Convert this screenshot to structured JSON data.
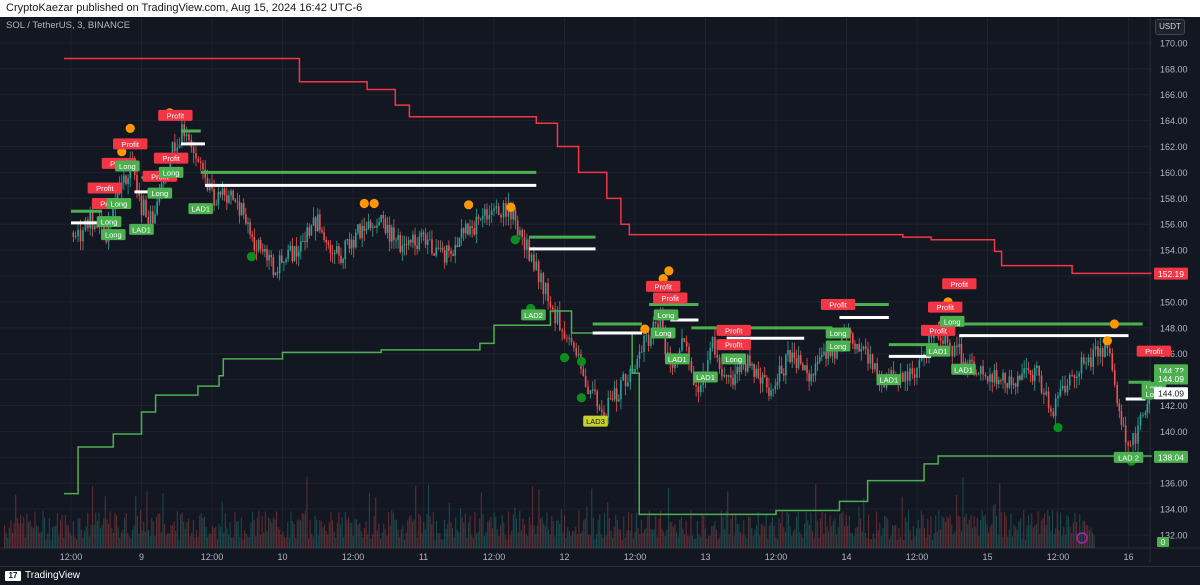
{
  "header": {
    "published_text": "CryptoKaezar published on TradingView.com, Aug 15, 2024 16:42 UTC-6"
  },
  "symbol_line": "SOL / TetherUS, 3, BINANCE",
  "currency_button": "USDT",
  "footer": {
    "logo_mark": "17",
    "logo_text": "TradingView"
  },
  "colors": {
    "background": "#131722",
    "grid": "#1e222d",
    "up_candle": "#26a69a",
    "down_candle": "#ef5350",
    "upper_band": "#f23645",
    "lower_band": "#4caf50",
    "white_level": "#ffffff",
    "green_level": "#4caf50",
    "profit_label": "#f23645",
    "long_label": "#4caf50",
    "orange_dot": "#ff9800",
    "green_dot": "#0a8f1e"
  },
  "chart_data": {
    "type": "candlestick",
    "title": "SOL / TetherUS, 3, BINANCE",
    "x_ticks": [
      "12:00",
      "9",
      "12:00",
      "10",
      "12:00",
      "11",
      "12:00",
      "12",
      "12:00",
      "13",
      "12:00",
      "14",
      "12:00",
      "15",
      "12:00",
      "16"
    ],
    "y_ticks": [
      132,
      134,
      136,
      138,
      140,
      142,
      144,
      146,
      148,
      150,
      152,
      154,
      156,
      158,
      160,
      162,
      164,
      166,
      168,
      170
    ],
    "ylim": [
      131,
      172
    ],
    "grid": true,
    "price_series_approx": [
      [
        0,
        155.2
      ],
      [
        0.05,
        154.8
      ],
      [
        0.12,
        156.4
      ],
      [
        0.25,
        155.0
      ],
      [
        0.33,
        158.6
      ],
      [
        0.42,
        160.5
      ],
      [
        0.5,
        157.5
      ],
      [
        0.58,
        156.0
      ],
      [
        0.72,
        162.2
      ],
      [
        0.82,
        163.4
      ],
      [
        0.92,
        160.0
      ],
      [
        1.0,
        158.0
      ],
      [
        1.15,
        158.5
      ],
      [
        1.3,
        154.5
      ],
      [
        1.45,
        152.6
      ],
      [
        1.6,
        154.0
      ],
      [
        1.75,
        156.2
      ],
      [
        1.9,
        153.4
      ],
      [
        2.05,
        155.5
      ],
      [
        2.2,
        156.0
      ],
      [
        2.35,
        154.2
      ],
      [
        2.5,
        155.0
      ],
      [
        2.65,
        153.6
      ],
      [
        2.8,
        155.4
      ],
      [
        2.95,
        156.6
      ],
      [
        3.05,
        157.2
      ],
      [
        3.12,
        157.0
      ],
      [
        3.2,
        155.0
      ],
      [
        3.3,
        152.5
      ],
      [
        3.4,
        149.8
      ],
      [
        3.5,
        147.5
      ],
      [
        3.6,
        145.2
      ],
      [
        3.7,
        142.8
      ],
      [
        3.78,
        141.6
      ],
      [
        3.9,
        143.5
      ],
      [
        4.0,
        145.5
      ],
      [
        4.08,
        147.2
      ],
      [
        4.18,
        148.2
      ],
      [
        4.25,
        144.5
      ],
      [
        4.35,
        147.5
      ],
      [
        4.45,
        142.8
      ],
      [
        4.55,
        146.8
      ],
      [
        4.65,
        143.5
      ],
      [
        4.8,
        145.5
      ],
      [
        4.95,
        143.5
      ],
      [
        5.1,
        145.8
      ],
      [
        5.25,
        144.5
      ],
      [
        5.4,
        146.2
      ],
      [
        5.5,
        147.5
      ],
      [
        5.62,
        146.0
      ],
      [
        5.75,
        144.2
      ],
      [
        5.85,
        143.8
      ],
      [
        5.95,
        144.5
      ],
      [
        6.05,
        145.6
      ],
      [
        6.12,
        148.5
      ],
      [
        6.2,
        147.0
      ],
      [
        6.3,
        146.0
      ],
      [
        6.42,
        144.8
      ],
      [
        6.55,
        144.0
      ],
      [
        6.7,
        144.2
      ],
      [
        6.85,
        144.5
      ],
      [
        6.95,
        141.5
      ],
      [
        7.05,
        143.5
      ],
      [
        7.15,
        145.0
      ],
      [
        7.25,
        145.8
      ],
      [
        7.35,
        146.5
      ],
      [
        7.42,
        142.5
      ],
      [
        7.48,
        138.8
      ],
      [
        7.55,
        139.8
      ],
      [
        7.62,
        141.5
      ],
      [
        7.66,
        142.6
      ]
    ],
    "upper_band_steps": [
      [
        -0.05,
        168.8
      ],
      [
        1.58,
        168.8
      ],
      [
        1.62,
        167.0
      ],
      [
        2.1,
        166.4
      ],
      [
        2.3,
        165.2
      ],
      [
        2.4,
        164.3
      ],
      [
        3.3,
        163.8
      ],
      [
        3.45,
        162.0
      ],
      [
        3.6,
        160.0
      ],
      [
        3.8,
        158.0
      ],
      [
        3.9,
        156.0
      ],
      [
        3.96,
        155.2
      ],
      [
        5.9,
        155.0
      ],
      [
        6.1,
        154.8
      ],
      [
        6.55,
        153.9
      ],
      [
        6.6,
        152.8
      ],
      [
        7.1,
        152.2
      ],
      [
        7.66,
        152.19
      ]
    ],
    "lower_band_steps": [
      [
        -0.05,
        135.2
      ],
      [
        0.05,
        138.8
      ],
      [
        0.3,
        139.8
      ],
      [
        0.5,
        141.5
      ],
      [
        0.6,
        142.8
      ],
      [
        0.9,
        143.5
      ],
      [
        1.05,
        144.3
      ],
      [
        1.08,
        145.6
      ],
      [
        1.5,
        146.1
      ],
      [
        2.2,
        146.3
      ],
      [
        2.9,
        146.8
      ],
      [
        3.0,
        148.2
      ],
      [
        3.4,
        149.3
      ],
      [
        3.55,
        147.6
      ],
      [
        3.98,
        144.5
      ],
      [
        4.03,
        133.6
      ],
      [
        5.0,
        133.9
      ],
      [
        5.45,
        134.6
      ],
      [
        5.65,
        136.2
      ],
      [
        6.05,
        137.5
      ],
      [
        6.15,
        138.1
      ],
      [
        7.66,
        138.04
      ]
    ],
    "white_levels": [
      {
        "x0": 0.0,
        "x1": 0.2,
        "y": 156.1
      },
      {
        "x0": 0.45,
        "x1": 0.6,
        "y": 158.5
      },
      {
        "x0": 0.78,
        "x1": 0.95,
        "y": 162.2
      },
      {
        "x0": 0.95,
        "x1": 3.3,
        "y": 159.0
      },
      {
        "x0": 3.25,
        "x1": 3.72,
        "y": 154.1
      },
      {
        "x0": 3.7,
        "x1": 4.05,
        "y": 147.6
      },
      {
        "x0": 4.25,
        "x1": 4.45,
        "y": 148.6
      },
      {
        "x0": 4.65,
        "x1": 5.2,
        "y": 147.2
      },
      {
        "x0": 5.45,
        "x1": 5.8,
        "y": 148.8
      },
      {
        "x0": 5.8,
        "x1": 6.1,
        "y": 145.8
      },
      {
        "x0": 6.3,
        "x1": 7.5,
        "y": 147.4
      },
      {
        "x0": 7.48,
        "x1": 7.62,
        "y": 142.5
      }
    ],
    "green_levels": [
      {
        "x0": 0.0,
        "x1": 0.22,
        "y": 157.0
      },
      {
        "x0": 0.5,
        "x1": 0.7,
        "y": 159.6
      },
      {
        "x0": 0.78,
        "x1": 0.92,
        "y": 163.2
      },
      {
        "x0": 0.92,
        "x1": 3.3,
        "y": 160.0
      },
      {
        "x0": 3.25,
        "x1": 3.72,
        "y": 155.0
      },
      {
        "x0": 3.7,
        "x1": 4.05,
        "y": 148.3
      },
      {
        "x0": 4.1,
        "x1": 4.45,
        "y": 149.8
      },
      {
        "x0": 4.4,
        "x1": 5.4,
        "y": 148.0
      },
      {
        "x0": 5.4,
        "x1": 5.8,
        "y": 149.8
      },
      {
        "x0": 5.8,
        "x1": 6.15,
        "y": 146.7
      },
      {
        "x0": 6.3,
        "x1": 7.6,
        "y": 148.3
      },
      {
        "x0": 7.5,
        "x1": 7.66,
        "y": 143.8
      }
    ],
    "orange_dots": [
      [
        0.42,
        163.4
      ],
      [
        0.36,
        161.6
      ],
      [
        0.7,
        164.6
      ],
      [
        2.08,
        157.6
      ],
      [
        2.15,
        157.6
      ],
      [
        2.82,
        157.5
      ],
      [
        3.12,
        157.3
      ],
      [
        4.07,
        147.9
      ],
      [
        4.2,
        151.8
      ],
      [
        4.24,
        152.4
      ],
      [
        6.22,
        150.0
      ],
      [
        6.19,
        148.4
      ],
      [
        7.35,
        147.0
      ],
      [
        7.4,
        148.3
      ]
    ],
    "green_dots": [
      [
        1.28,
        153.5
      ],
      [
        3.15,
        154.8
      ],
      [
        3.26,
        149.5
      ],
      [
        3.5,
        145.7
      ],
      [
        3.62,
        145.4
      ],
      [
        3.62,
        142.6
      ],
      [
        7.0,
        140.3
      ],
      [
        7.5,
        138.1
      ],
      [
        7.52,
        137.7
      ]
    ],
    "labels": [
      {
        "text": "Profit",
        "kind": "profit",
        "x": 0.42,
        "y": 162.2
      },
      {
        "text": "Profit",
        "kind": "profit",
        "x": 0.34,
        "y": 160.7
      },
      {
        "text": "Profit",
        "kind": "profit",
        "x": 0.24,
        "y": 158.8
      },
      {
        "text": "Profit",
        "kind": "profit",
        "x": 0.27,
        "y": 157.6
      },
      {
        "text": "Long",
        "kind": "long",
        "x": 0.4,
        "y": 160.5
      },
      {
        "text": "Long",
        "kind": "long",
        "x": 0.34,
        "y": 157.6
      },
      {
        "text": "Long",
        "kind": "long",
        "x": 0.27,
        "y": 156.2
      },
      {
        "text": "Long",
        "kind": "long",
        "x": 0.3,
        "y": 155.2
      },
      {
        "text": "LAD1",
        "kind": "long",
        "x": 0.5,
        "y": 155.6
      },
      {
        "text": "Profit",
        "kind": "profit",
        "x": 0.74,
        "y": 164.4
      },
      {
        "text": "Profit",
        "kind": "profit",
        "x": 0.63,
        "y": 159.7
      },
      {
        "text": "Profit",
        "kind": "profit",
        "x": 0.71,
        "y": 161.1
      },
      {
        "text": "Long",
        "kind": "long",
        "x": 0.63,
        "y": 158.4
      },
      {
        "text": "Long",
        "kind": "long",
        "x": 0.71,
        "y": 160.0
      },
      {
        "text": "LAD1",
        "kind": "long",
        "x": 0.92,
        "y": 157.2
      },
      {
        "text": "LAD2",
        "kind": "long",
        "x": 3.28,
        "y": 149.0
      },
      {
        "text": "LAD3",
        "kind": "lad3",
        "x": 3.72,
        "y": 140.8
      },
      {
        "text": "Profit",
        "kind": "profit",
        "x": 4.2,
        "y": 151.2
      },
      {
        "text": "Profit",
        "kind": "profit",
        "x": 4.25,
        "y": 150.3
      },
      {
        "text": "Long",
        "kind": "long",
        "x": 4.22,
        "y": 149.0
      },
      {
        "text": "Long",
        "kind": "long",
        "x": 4.2,
        "y": 147.6
      },
      {
        "text": "LAD1",
        "kind": "long",
        "x": 4.3,
        "y": 145.6
      },
      {
        "text": "Profit",
        "kind": "profit",
        "x": 4.7,
        "y": 147.8
      },
      {
        "text": "Profit",
        "kind": "profit",
        "x": 4.7,
        "y": 146.7
      },
      {
        "text": "Long",
        "kind": "long",
        "x": 4.7,
        "y": 145.6
      },
      {
        "text": "LAD1",
        "kind": "long",
        "x": 4.5,
        "y": 144.2
      },
      {
        "text": "Profit",
        "kind": "profit",
        "x": 5.44,
        "y": 149.8
      },
      {
        "text": "Long",
        "kind": "long",
        "x": 5.44,
        "y": 147.6
      },
      {
        "text": "Long",
        "kind": "long",
        "x": 5.44,
        "y": 146.6
      },
      {
        "text": "LAD1",
        "kind": "long",
        "x": 5.8,
        "y": 144.0
      },
      {
        "text": "Profit",
        "kind": "profit",
        "x": 6.15,
        "y": 147.8
      },
      {
        "text": "Profit",
        "kind": "profit",
        "x": 6.3,
        "y": 151.4
      },
      {
        "text": "Profit",
        "kind": "profit",
        "x": 6.2,
        "y": 149.6
      },
      {
        "text": "Long",
        "kind": "long",
        "x": 6.25,
        "y": 148.5
      },
      {
        "text": "LAD1",
        "kind": "long",
        "x": 6.33,
        "y": 144.8
      },
      {
        "text": "LAD1",
        "kind": "long",
        "x": 6.15,
        "y": 146.2
      },
      {
        "text": "Profit",
        "kind": "profit",
        "x": 7.68,
        "y": 146.2
      },
      {
        "text": "Long",
        "kind": "long",
        "x": 7.68,
        "y": 143.4
      },
      {
        "text": "Long",
        "kind": "long",
        "x": 7.68,
        "y": 142.9
      },
      {
        "text": "LAD 2",
        "kind": "long",
        "x": 7.5,
        "y": 138.0
      }
    ],
    "price_tags": [
      {
        "text": "152.19",
        "price": 152.19,
        "color": "#f23645",
        "text_color": "#ffffff"
      },
      {
        "text": "144.72",
        "price": 144.72,
        "color": "#4caf50",
        "text_color": "#ffffff"
      },
      {
        "text": "144.09",
        "price": 144.09,
        "color": "#4caf50",
        "text_color": "#ffffff"
      },
      {
        "text": "144.09",
        "price": 142.95,
        "color": "#ffffff",
        "text_color": "#131722"
      },
      {
        "text": "138.04",
        "price": 138.04,
        "color": "#4caf50",
        "text_color": "#ffffff"
      }
    ],
    "volume_badge": "0"
  }
}
